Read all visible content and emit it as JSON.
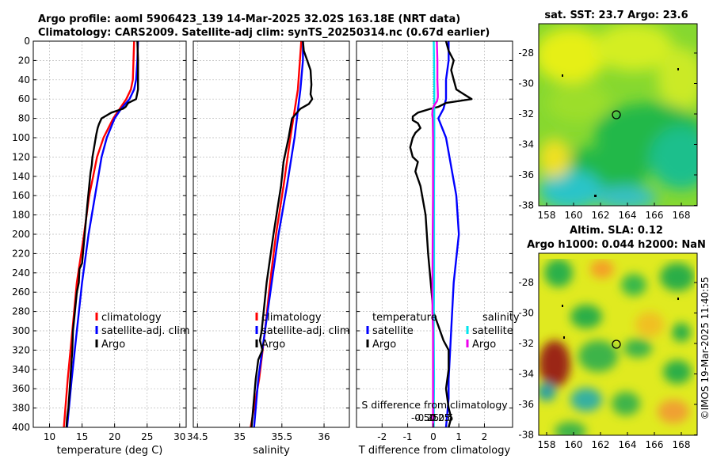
{
  "header": {
    "line1": "Argo profile: aoml 5906423_139 14-Mar-2025 32.02S 163.18E (NRT data)",
    "line2": "Climatology: CARS2009. Satellite-adj clim: synTS_20250314.nc (0.67d earlier)"
  },
  "colors": {
    "red": "#ff0000",
    "blue": "#0000ff",
    "black": "#000000",
    "cyan": "#00e5ee",
    "magenta": "#ee00ee"
  },
  "chart_data": [
    {
      "type": "line",
      "name": "temperature",
      "xlabel": "temperature (deg C)",
      "xlim": [
        7.5,
        31
      ],
      "xticks": [
        "10",
        "15",
        "20",
        "25",
        "30"
      ],
      "xtick_values": [
        10,
        15,
        20,
        25,
        30
      ],
      "ylim": [
        0,
        400
      ],
      "yticks": [
        0,
        20,
        40,
        60,
        80,
        100,
        120,
        140,
        160,
        180,
        200,
        220,
        240,
        260,
        280,
        300,
        320,
        340,
        360,
        380,
        400
      ],
      "legend": [
        "climatology",
        "satellite-adj. clim",
        "Argo"
      ],
      "series": [
        {
          "name": "climatology",
          "color": "red",
          "depth": [
            0,
            20,
            40,
            50,
            60,
            70,
            80,
            100,
            120,
            140,
            160,
            200,
            250,
            300,
            350,
            400
          ],
          "values": [
            23.0,
            22.9,
            22.8,
            22.5,
            21.8,
            20.8,
            19.8,
            18.3,
            17.3,
            16.7,
            16.1,
            15.3,
            14.2,
            13.5,
            12.8,
            12.2
          ]
        },
        {
          "name": "satellite-adj. clim",
          "color": "blue",
          "depth": [
            0,
            20,
            40,
            50,
            60,
            70,
            80,
            100,
            120,
            140,
            160,
            200,
            250,
            300,
            350,
            400
          ],
          "values": [
            23.6,
            23.5,
            23.3,
            23.0,
            22.3,
            21.0,
            20.0,
            18.8,
            18.0,
            17.5,
            17.0,
            16.0,
            15.0,
            14.2,
            13.4,
            12.7
          ]
        },
        {
          "name": "Argo",
          "color": "black",
          "depth": [
            0,
            20,
            40,
            50,
            60,
            64,
            68,
            70,
            74,
            80,
            86,
            90,
            96,
            104,
            112,
            120,
            128,
            136,
            150,
            170,
            200,
            230,
            236,
            250,
            260,
            280,
            300,
            320,
            340,
            360,
            380,
            390,
            400
          ],
          "values": [
            23.5,
            23.6,
            23.6,
            23.6,
            23.3,
            22.1,
            21.7,
            21.3,
            19.5,
            18.0,
            17.6,
            17.4,
            17.2,
            17.0,
            16.8,
            16.6,
            16.5,
            16.3,
            16.1,
            15.8,
            15.4,
            15.0,
            14.6,
            14.5,
            14.2,
            13.9,
            13.6,
            13.5,
            13.3,
            13.1,
            12.9,
            12.7,
            12.6
          ]
        }
      ]
    },
    {
      "type": "line",
      "name": "salinity",
      "xlabel": "salinity",
      "xlim": [
        34.45,
        36.3
      ],
      "xticks": [
        "34.5",
        "35",
        "35.5",
        "36"
      ],
      "xtick_values": [
        34.5,
        35,
        35.5,
        36
      ],
      "ylim": [
        0,
        400
      ],
      "legend": [
        "climatology",
        "satellite-adj. clim",
        "Argo"
      ],
      "series": [
        {
          "name": "climatology",
          "color": "red",
          "depth": [
            0,
            50,
            100,
            150,
            200,
            250,
            300,
            350,
            400
          ],
          "values": [
            35.73,
            35.69,
            35.6,
            35.52,
            35.43,
            35.36,
            35.3,
            35.23,
            35.13
          ]
        },
        {
          "name": "satellite-adj. clim",
          "color": "blue",
          "depth": [
            0,
            20,
            50,
            100,
            150,
            200,
            250,
            300,
            350,
            400
          ],
          "values": [
            35.75,
            35.75,
            35.72,
            35.65,
            35.56,
            35.46,
            35.38,
            35.3,
            35.22,
            35.17
          ]
        },
        {
          "name": "Argo",
          "color": "black",
          "depth": [
            0,
            10,
            20,
            30,
            45,
            55,
            60,
            65,
            70,
            80,
            100,
            125,
            150,
            200,
            250,
            300,
            310,
            320,
            330,
            350,
            380,
            400
          ],
          "values": [
            35.75,
            35.76,
            35.8,
            35.84,
            35.85,
            35.84,
            35.86,
            35.82,
            35.72,
            35.62,
            35.58,
            35.52,
            35.49,
            35.4,
            35.32,
            35.26,
            35.24,
            35.27,
            35.22,
            35.19,
            35.16,
            35.14
          ]
        }
      ]
    },
    {
      "type": "line",
      "name": "difference",
      "xlabel": "T difference from climatology",
      "xlabel_top": "S difference from climatology",
      "xlim": [
        -3,
        3.1
      ],
      "xticks": [
        "-2",
        "-1",
        "0",
        "1",
        "2"
      ],
      "xtick_values": [
        -2,
        -1,
        0,
        1,
        2
      ],
      "top_ticks": [
        "-0.5",
        "-0.25",
        "0",
        "0.25",
        "0.5"
      ],
      "top_tick_values": [
        -0.5,
        -0.25,
        0,
        0.25,
        0.5
      ],
      "ylim": [
        0,
        400
      ],
      "legend_titles": [
        "temperature",
        "salinity"
      ],
      "legend": [
        "satellite",
        "Argo",
        "satellite",
        "Argo"
      ],
      "series": [
        {
          "name": "T satellite",
          "color": "blue",
          "depth": [
            0,
            20,
            40,
            60,
            70,
            80,
            100,
            130,
            160,
            200,
            250,
            300,
            350,
            370,
            400
          ],
          "values": [
            0.6,
            0.6,
            0.5,
            0.5,
            0.4,
            0.2,
            0.5,
            0.7,
            0.9,
            1.0,
            0.8,
            0.7,
            0.6,
            0.6,
            0.5
          ]
        },
        {
          "name": "T Argo",
          "color": "black",
          "depth": [
            0,
            10,
            20,
            30,
            40,
            50,
            55,
            60,
            64,
            68,
            70,
            74,
            78,
            82,
            85,
            90,
            95,
            100,
            110,
            120,
            125,
            135,
            150,
            180,
            220,
            250,
            280,
            310,
            320,
            340,
            360,
            380,
            390,
            400
          ],
          "values": [
            0.5,
            0.6,
            0.8,
            0.7,
            0.8,
            0.9,
            1.2,
            1.5,
            0.5,
            0.2,
            -0.1,
            -0.6,
            -0.8,
            -0.8,
            -0.6,
            -0.5,
            -0.7,
            -0.8,
            -0.9,
            -0.8,
            -0.6,
            -0.7,
            -0.5,
            -0.3,
            -0.2,
            -0.1,
            0.0,
            0.4,
            0.6,
            0.6,
            0.5,
            0.6,
            0.7,
            0.6
          ]
        },
        {
          "name": "S satellite",
          "color": "cyan",
          "depth": [
            0,
            20,
            50,
            100,
            150,
            200,
            250,
            300,
            350,
            400
          ],
          "values": [
            0.02,
            0.03,
            0.04,
            0.04,
            0.03,
            0.03,
            0.03,
            0.02,
            0.03,
            0.02
          ]
        },
        {
          "name": "S Argo",
          "color": "magenta",
          "depth": [
            0,
            20,
            40,
            55,
            58,
            62,
            66,
            70,
            76,
            80,
            100,
            130,
            160,
            200,
            250,
            280,
            300,
            320,
            350,
            380,
            400
          ],
          "values": [
            0.14,
            0.16,
            0.16,
            0.18,
            0.18,
            0.15,
            0.05,
            -0.02,
            -0.04,
            -0.02,
            -0.01,
            -0.01,
            -0.01,
            -0.02,
            -0.03,
            -0.03,
            -0.01,
            -0.01,
            -0.01,
            -0.01,
            -0.01
          ]
        }
      ]
    }
  ],
  "maps": {
    "top": {
      "title": "sat. SST: 23.7 Argo: 23.6",
      "xticks": [
        "158",
        "160",
        "162",
        "164",
        "166",
        "168"
      ],
      "yticks": [
        "-28",
        "-30",
        "-32",
        "-34",
        "-36",
        "-38"
      ]
    },
    "bottom": {
      "title1": "Altim. SLA: 0.12",
      "title2": "Argo h1000: 0.044 h2000: NaN",
      "xticks": [
        "158",
        "160",
        "162",
        "164",
        "166",
        "168"
      ],
      "yticks": [
        "-28",
        "-30",
        "-32",
        "-34",
        "-36",
        "-38"
      ]
    }
  },
  "watermark": "©IMOS 19-Mar-2025 11:40:55"
}
